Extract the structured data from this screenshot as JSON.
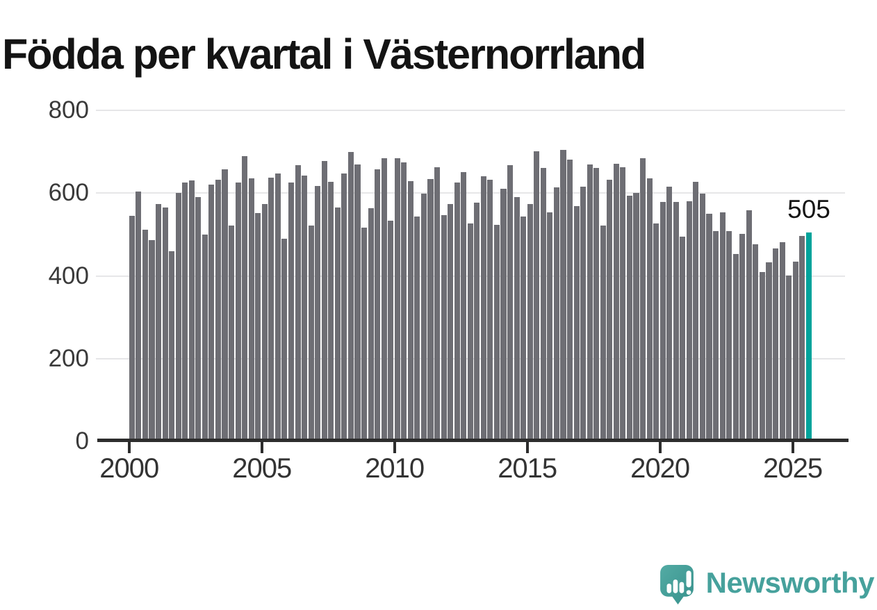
{
  "title": "Födda per kvartal i Västernorrland",
  "chart_data": {
    "type": "bar",
    "title": "Födda per kvartal i Västernorrland",
    "x_start": "2000 Q1",
    "x_end": "2025 Q3",
    "x_unit": "quarter",
    "x_tick_labels": [
      "2000",
      "2005",
      "2010",
      "2015",
      "2020",
      "2025"
    ],
    "y_ticks": [
      0,
      200,
      400,
      600,
      800
    ],
    "ylim": [
      0,
      800
    ],
    "grid": "horizontal",
    "legend": "none",
    "series": [
      {
        "name": "Födda per kvartal",
        "values": [
          545,
          603,
          511,
          486,
          573,
          566,
          459,
          600,
          626,
          630,
          590,
          499,
          620,
          633,
          658,
          522,
          625,
          690,
          636,
          551,
          573,
          638,
          647,
          490,
          625,
          668,
          642,
          521,
          618,
          677,
          628,
          565,
          647,
          700,
          669,
          516,
          564,
          657,
          685,
          534,
          685,
          674,
          629,
          543,
          598,
          634,
          662,
          547,
          574,
          626,
          650,
          526,
          577,
          640,
          633,
          524,
          610,
          668,
          590,
          544,
          573,
          701,
          661,
          553,
          614,
          705,
          681,
          568,
          615,
          670,
          660,
          521,
          632,
          671,
          662,
          593,
          600,
          685,
          635,
          527,
          579,
          615,
          578,
          495,
          580,
          628,
          598,
          550,
          509,
          553,
          509,
          453,
          502,
          558,
          476,
          410,
          433,
          466,
          481,
          401,
          434,
          496,
          505
        ]
      }
    ],
    "highlight": {
      "index": 102,
      "quarter": "2025 Q3",
      "value": 505,
      "label": "505"
    }
  },
  "annotation": {
    "label": "505"
  },
  "footer": {
    "brand": "Newsworthy"
  },
  "icons": {
    "brand_logo": "newsworthy-speech-bubble-bar-chart-icon"
  },
  "colors": {
    "bar": "#6e6e74",
    "highlight": "#00a39b",
    "brand": "#46a19c",
    "brand_gradient_start": "#53aba4",
    "brand_gradient_end": "#37918c",
    "axis": "#2d2d2d",
    "grid": "#e6e6e8",
    "title_text": "#141414",
    "tick_text": "#3a3a3a"
  }
}
